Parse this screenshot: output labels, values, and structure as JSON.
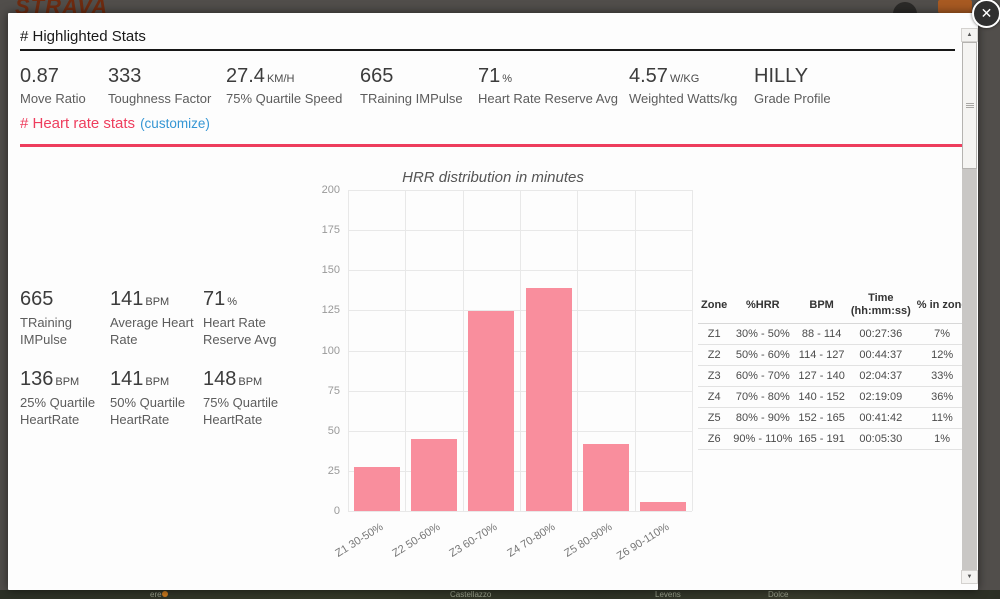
{
  "background": {
    "brand": "STRAVA",
    "map_labels": [
      "ere",
      "Castellazzo",
      "Levens",
      "Dolce"
    ]
  },
  "modal": {
    "title": "# Highlighted Stats",
    "close_icon": "✕",
    "highlighted_stats": [
      {
        "value": "0.87",
        "unit": "",
        "label": "Move Ratio"
      },
      {
        "value": "333",
        "unit": "",
        "label": "Toughness Factor"
      },
      {
        "value": "27.4",
        "unit": "KM/H",
        "label": "75% Quartile Speed"
      },
      {
        "value": "665",
        "unit": "",
        "label": "TRaining IMPulse"
      },
      {
        "value": "71",
        "unit": "%",
        "label": "Heart Rate Reserve Avg"
      },
      {
        "value": "4.57",
        "unit": "W/KG",
        "label": "Weighted Watts/kg"
      },
      {
        "value": "HILLY",
        "unit": "",
        "label": "Grade Profile"
      }
    ],
    "hr_section": {
      "title": "# Heart rate stats",
      "customize_link": "(customize)",
      "stats": [
        {
          "value": "665",
          "unit": "",
          "label": "TRaining IMPulse"
        },
        {
          "value": "141",
          "unit": "BPM",
          "label": "Average Heart Rate"
        },
        {
          "value": "71",
          "unit": "%",
          "label": "Heart Rate Reserve Avg"
        },
        {
          "value": "136",
          "unit": "BPM",
          "label": "25% Quartile HeartRate"
        },
        {
          "value": "141",
          "unit": "BPM",
          "label": "50% Quartile HeartRate"
        },
        {
          "value": "148",
          "unit": "BPM",
          "label": "75% Quartile HeartRate"
        }
      ]
    },
    "zone_table": {
      "headers": [
        "Zone",
        "%HRR",
        "BPM",
        "Time\n(hh:mm:ss)",
        "% in zone"
      ],
      "rows": [
        [
          "Z1",
          "30% - 50%",
          "88 - 114",
          "00:27:36",
          "7%"
        ],
        [
          "Z2",
          "50% - 60%",
          "114 - 127",
          "00:44:37",
          "12%"
        ],
        [
          "Z3",
          "60% - 70%",
          "127 - 140",
          "02:04:37",
          "33%"
        ],
        [
          "Z4",
          "70% - 80%",
          "140 - 152",
          "02:19:09",
          "36%"
        ],
        [
          "Z5",
          "80% - 90%",
          "152 - 165",
          "00:41:42",
          "11%"
        ],
        [
          "Z6",
          "90% - 110%",
          "165 - 191",
          "00:05:30",
          "1%"
        ]
      ]
    }
  },
  "chart_data": {
    "type": "bar",
    "title": "HRR distribution in minutes",
    "categories": [
      "Z1 30-50%",
      "Z2 50-60%",
      "Z3 60-70%",
      "Z4 70-80%",
      "Z5 80-90%",
      "Z6 90-110%"
    ],
    "values": [
      27.6,
      44.6,
      124.6,
      139.2,
      41.7,
      5.5
    ],
    "xlabel": "",
    "ylabel": "",
    "ylim": [
      0,
      200
    ],
    "yticks": [
      0,
      25,
      50,
      75,
      100,
      125,
      150,
      175,
      200
    ],
    "grid": true,
    "legend": false,
    "bar_color": "#f98e9d"
  },
  "colors": {
    "accent": "#ee3d5d",
    "link": "#3596d4",
    "bar": "#f98e9d"
  }
}
